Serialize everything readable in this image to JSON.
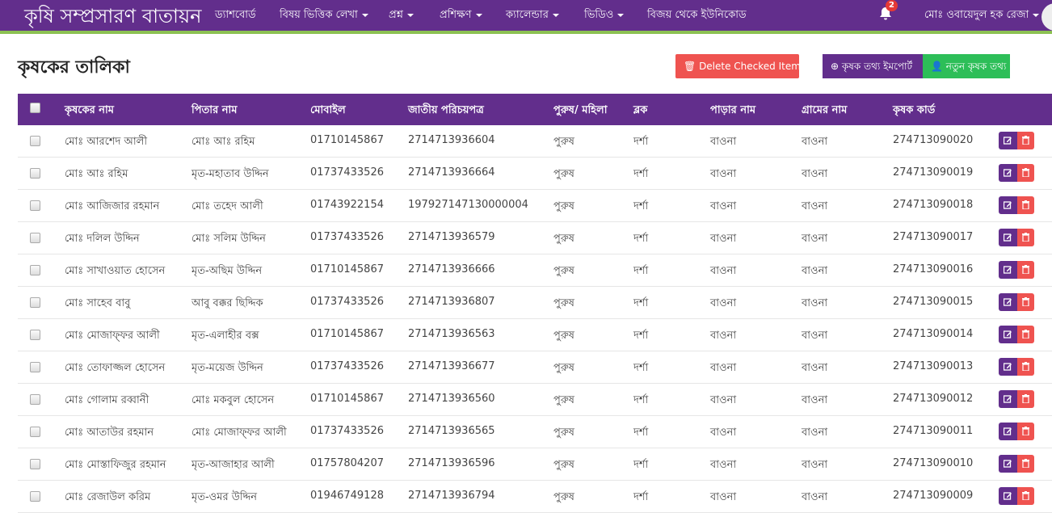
{
  "nav": {
    "brand": "কৃষি সম্প্রসারণ বাতায়ন",
    "items": [
      {
        "label": "ড্যাশবোর্ড",
        "dropdown": false
      },
      {
        "label": "বিষয় ভিত্তিক লেখা",
        "dropdown": true
      },
      {
        "label": "প্রশ্ন",
        "dropdown": true
      },
      {
        "label": "প্রশিক্ষণ",
        "dropdown": true
      },
      {
        "label": "ক্যালেন্ডার",
        "dropdown": true
      },
      {
        "label": "ভিডিও",
        "dropdown": true
      },
      {
        "label": "বিজয় থেকে ইউনিকোড",
        "dropdown": false
      }
    ],
    "notifications": "2",
    "user": "মোঃ ওবায়েদুল হক রেজা"
  },
  "page": {
    "title": "কৃষকের তালিকা",
    "delete_label": "Delete Checked Items",
    "import_label": "কৃষক তথ্য ইমপোর্ট",
    "new_label": "নতুন কৃষক তথ্য"
  },
  "colors": {
    "primary": "#622e8c",
    "danger": "#ef5350",
    "success": "#2dbe58",
    "nav_border": "#8cc152"
  },
  "table": {
    "headers": [
      "কৃষকের নাম",
      "পিতার নাম",
      "মোবাইল",
      "জাতীয় পরিচয়পত্র",
      "পুরুষ/ মহিলা",
      "ব্লক",
      "পাড়ার নাম",
      "গ্রামের নাম",
      "কৃষক কার্ড"
    ],
    "rows": [
      [
        "মোঃ আরশেদ আলী",
        "মোঃ আঃ রহিম",
        "01710145867",
        "2714713936604",
        "পুরুষ",
        "দর্শা",
        "বাওনা",
        "বাওনা",
        "274713090020"
      ],
      [
        "মোঃ আঃ রহিম",
        "মৃত-মহাতাব উদ্দিন",
        "01737433526",
        "2714713936664",
        "পুরুষ",
        "দর্শা",
        "বাওনা",
        "বাওনা",
        "274713090019"
      ],
      [
        "মোঃ আজিজার রহমান",
        "মোঃ তহেদ আলী",
        "01743922154",
        "197927147130000004",
        "পুরুষ",
        "দর্শা",
        "বাওনা",
        "বাওনা",
        "274713090018"
      ],
      [
        "মোঃ দলিল উদ্দিন",
        "মোঃ সলিম উদ্দিন",
        "01737433526",
        "2714713936579",
        "পুরুষ",
        "দর্শা",
        "বাওনা",
        "বাওনা",
        "274713090017"
      ],
      [
        "মোঃ সাখাওয়াত হোসেন",
        "মৃত-অছিম উদ্দিন",
        "01710145867",
        "2714713936666",
        "পুরুষ",
        "দর্শা",
        "বাওনা",
        "বাওনা",
        "274713090016"
      ],
      [
        "মোঃ সাহেব বাবু",
        "আবু বক্কর ছিদ্দিক",
        "01737433526",
        "2714713936807",
        "পুরুষ",
        "দর্শা",
        "বাওনা",
        "বাওনা",
        "274713090015"
      ],
      [
        "মোঃ মোজাফ্ফর আলী",
        "মৃত-এলাহীর বক্স",
        "01710145867",
        "2714713936563",
        "পুরুষ",
        "দর্শা",
        "বাওনা",
        "বাওনা",
        "274713090014"
      ],
      [
        "মোঃ তোফাজ্জল হোসেন",
        "মৃত-ময়েজ উদ্দিন",
        "01737433526",
        "2714713936677",
        "পুরুষ",
        "দর্শা",
        "বাওনা",
        "বাওনা",
        "274713090013"
      ],
      [
        "মোঃ গোলাম রব্বানী",
        "মোঃ মকবুল হোসেন",
        "01710145867",
        "2714713936560",
        "পুরুষ",
        "দর্শা",
        "বাওনা",
        "বাওনা",
        "274713090012"
      ],
      [
        "মোঃ আতাউর রহমান",
        "মোঃ মোজাফ্ফর আলী",
        "01737433526",
        "2714713936565",
        "পুরুষ",
        "দর্শা",
        "বাওনা",
        "বাওনা",
        "274713090011"
      ],
      [
        "মোঃ মোস্তাফিজুর রহমান",
        "মৃত-আজাহার আলী",
        "01757804207",
        "2714713936596",
        "পুরুষ",
        "দর্শা",
        "বাওনা",
        "বাওনা",
        "274713090010"
      ],
      [
        "মোঃ রেজাউল করিম",
        "মৃত-ওমর উদ্দিন",
        "01946749128",
        "2714713936794",
        "পুরুষ",
        "দর্শা",
        "বাওনা",
        "বাওনা",
        "274713090009"
      ]
    ]
  }
}
